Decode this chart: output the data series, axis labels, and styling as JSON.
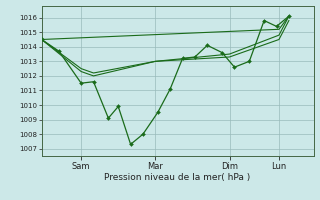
{
  "bg_color": "#cce8e8",
  "grid_color": "#99bbbb",
  "line_color": "#1a6b1a",
  "marker_color": "#1a6b1a",
  "xlabel": "Pression niveau de la mer( hPa )",
  "ylim": [
    1006.5,
    1016.8
  ],
  "yticks": [
    1007,
    1008,
    1009,
    1010,
    1011,
    1012,
    1013,
    1014,
    1015,
    1016
  ],
  "xtick_labels": [
    "Sam",
    "Mar",
    "Dim",
    "Lun"
  ],
  "xtick_positions": [
    16,
    46,
    76,
    96
  ],
  "xlim": [
    0,
    110
  ],
  "series1": {
    "x": [
      0,
      7,
      16,
      21,
      27,
      31,
      36,
      41,
      47,
      52,
      57,
      62,
      67,
      73,
      78,
      84,
      90,
      95,
      100
    ],
    "y": [
      1014.5,
      1013.7,
      1011.5,
      1011.6,
      1009.1,
      1009.9,
      1007.3,
      1008.0,
      1009.5,
      1011.1,
      1013.2,
      1013.3,
      1014.1,
      1013.6,
      1012.6,
      1013.0,
      1015.8,
      1015.4,
      1016.1
    ]
  },
  "series2": {
    "x": [
      0,
      16,
      21,
      46,
      76,
      96,
      100
    ],
    "y": [
      1014.5,
      1012.5,
      1012.2,
      1013.0,
      1013.5,
      1014.8,
      1016.1
    ]
  },
  "series3": {
    "x": [
      0,
      16,
      21,
      46,
      76,
      96,
      100
    ],
    "y": [
      1014.5,
      1012.3,
      1012.0,
      1013.0,
      1013.3,
      1014.5,
      1015.8
    ]
  },
  "series4": {
    "x": [
      0,
      96,
      100
    ],
    "y": [
      1014.5,
      1015.2,
      1016.1
    ]
  }
}
